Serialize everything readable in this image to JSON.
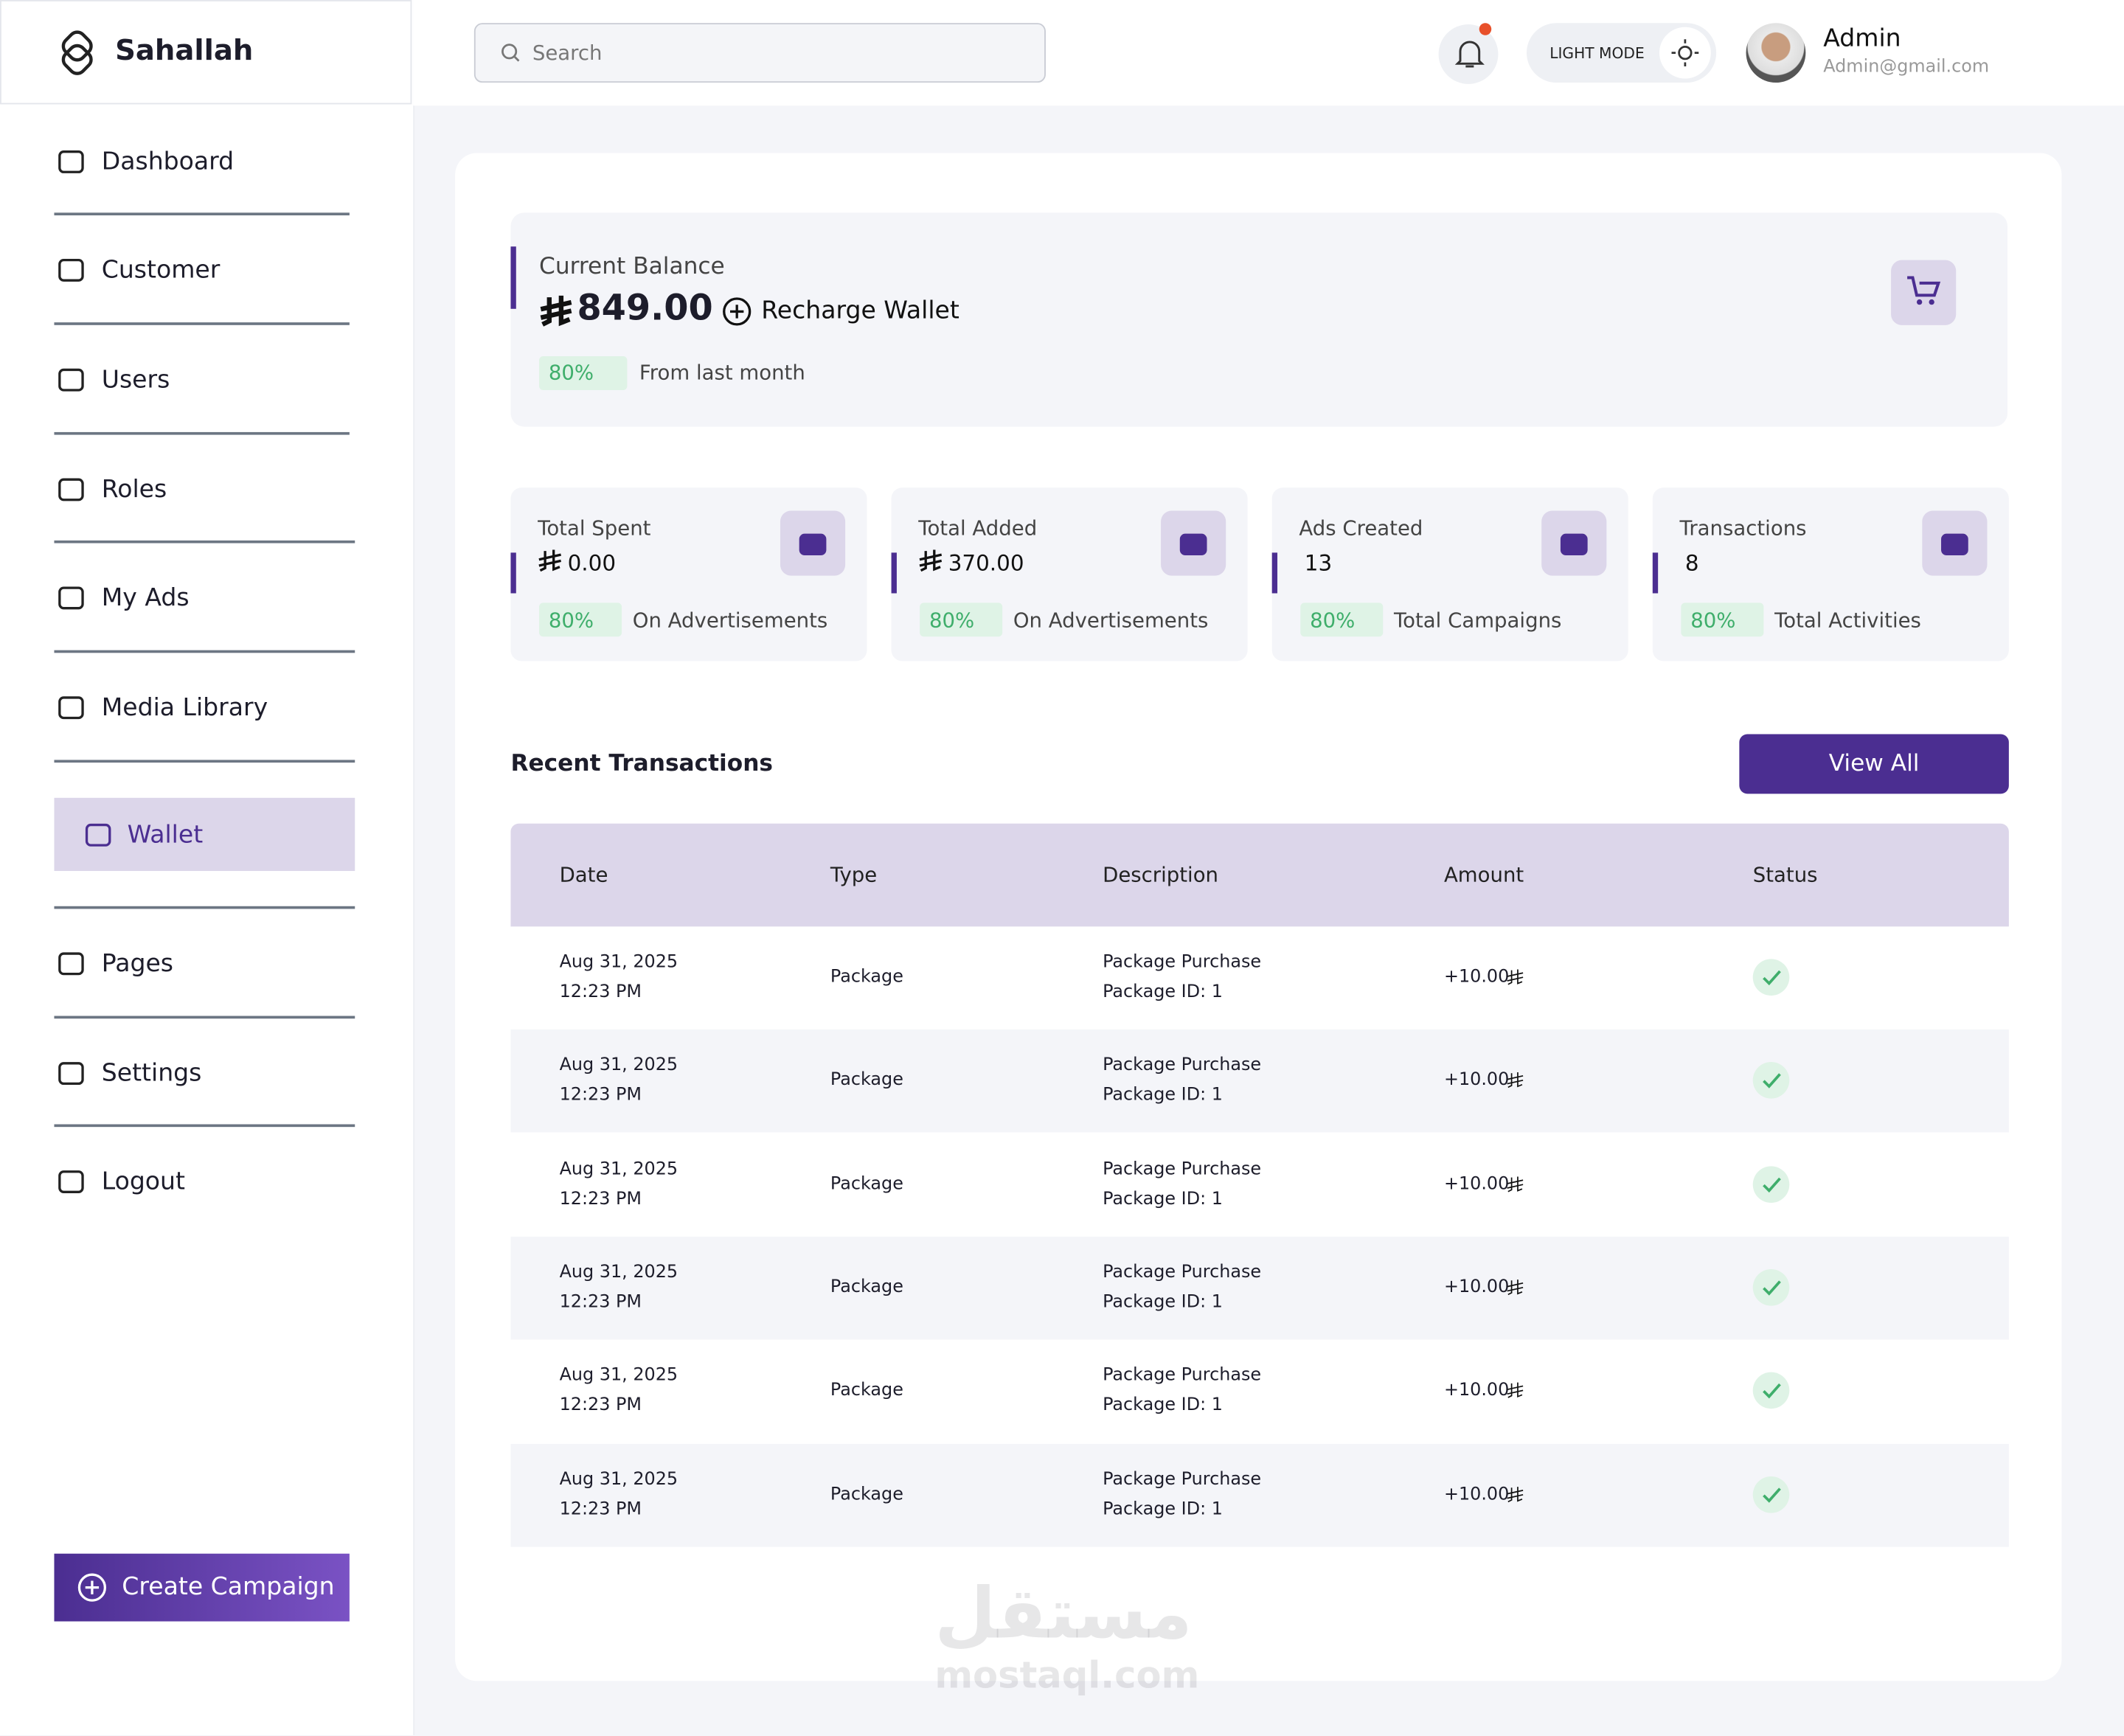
{
  "brand": "Sahallah",
  "search_placeholder": "Search",
  "mode_label": "LIGHT MODE",
  "user": {
    "name": "Admin",
    "email": "Admin@gmail.com"
  },
  "nav": [
    "Dashboard",
    "Customer",
    "Users",
    "Roles",
    "My Ads",
    "Media Library",
    "Wallet",
    "Pages",
    "Settings",
    "Logout"
  ],
  "active_nav": "Wallet",
  "create_button": "Create Campaign",
  "balance": {
    "label": "Current Balance",
    "amount": "849.00",
    "action": "Recharge Wallet",
    "change": "80%",
    "change_note": "From last month"
  },
  "stats": [
    {
      "label": "Total Spent",
      "value": "0.00",
      "currency": true,
      "change": "80%",
      "note": "On Advertisements"
    },
    {
      "label": "Total Added",
      "value": "370.00",
      "currency": true,
      "change": "80%",
      "note": "On Advertisements"
    },
    {
      "label": "Ads Created",
      "value": "13",
      "currency": false,
      "change": "80%",
      "note": "Total Campaigns"
    },
    {
      "label": "Transactions",
      "value": "8",
      "currency": false,
      "change": "80%",
      "note": "Total Activities"
    }
  ],
  "recent": {
    "title": "Recent Transactions",
    "button": "View All"
  },
  "table": {
    "headers": [
      "Date",
      "Type",
      "Description",
      "Amount",
      "Status"
    ],
    "rows": [
      {
        "date": "Aug 31, 2025",
        "time": "12:23 PM",
        "type": "Package",
        "desc": "Package Purchase",
        "desc2": "Package ID: 1",
        "amount": "+10.00"
      },
      {
        "date": "Aug 31, 2025",
        "time": "12:23 PM",
        "type": "Package",
        "desc": "Package Purchase",
        "desc2": "Package ID: 1",
        "amount": "+10.00"
      },
      {
        "date": "Aug 31, 2025",
        "time": "12:23 PM",
        "type": "Package",
        "desc": "Package Purchase",
        "desc2": "Package ID: 1",
        "amount": "+10.00"
      },
      {
        "date": "Aug 31, 2025",
        "time": "12:23 PM",
        "type": "Package",
        "desc": "Package Purchase",
        "desc2": "Package ID: 1",
        "amount": "+10.00"
      },
      {
        "date": "Aug 31, 2025",
        "time": "12:23 PM",
        "type": "Package",
        "desc": "Package Purchase",
        "desc2": "Package ID: 1",
        "amount": "+10.00"
      },
      {
        "date": "Aug 31, 2025",
        "time": "12:23 PM",
        "type": "Package",
        "desc": "Package Purchase",
        "desc2": "Package ID: 1",
        "amount": "+10.00"
      }
    ]
  },
  "watermark": {
    "arabic": "مستقل",
    "latin": "mostaql.com"
  }
}
